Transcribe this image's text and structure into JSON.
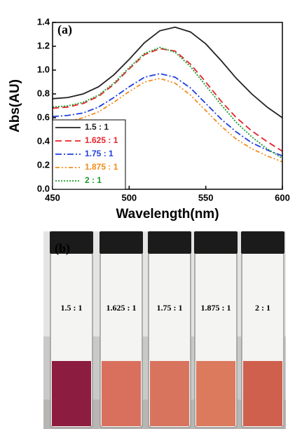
{
  "chart_data": {
    "type": "line",
    "panel_label": "(a)",
    "xlabel": "Wavelength(nm)",
    "ylabel": "Abs(AU)",
    "x": [
      450,
      460,
      470,
      480,
      490,
      500,
      510,
      520,
      530,
      540,
      550,
      560,
      570,
      580,
      590,
      600
    ],
    "xlim": [
      450,
      600
    ],
    "xticks": [
      450,
      500,
      550,
      600
    ],
    "ylim": [
      0,
      1.4
    ],
    "yticks": [
      {
        "value": 0,
        "label": "0.0"
      },
      0.2,
      0.4,
      0.6,
      0.8,
      {
        "value": 1,
        "label": "1.0"
      },
      1.2,
      1.4
    ],
    "legend": "lower left",
    "series": [
      {
        "name": "1.5 : 1",
        "color": "#222222",
        "linestyle": "solid",
        "values": [
          0.76,
          0.77,
          0.8,
          0.86,
          0.96,
          1.09,
          1.23,
          1.33,
          1.36,
          1.32,
          1.22,
          1.08,
          0.93,
          0.8,
          0.69,
          0.6
        ]
      },
      {
        "name": "1.625 : 1",
        "color": "#e8222a",
        "linestyle": "dashed",
        "values": [
          0.68,
          0.69,
          0.72,
          0.78,
          0.88,
          1.01,
          1.13,
          1.18,
          1.16,
          1.05,
          0.9,
          0.74,
          0.6,
          0.49,
          0.4,
          0.32
        ]
      },
      {
        "name": "1.75 : 1",
        "color": "#1f3fe0",
        "linestyle": "dashdot",
        "values": [
          0.61,
          0.62,
          0.64,
          0.69,
          0.77,
          0.86,
          0.94,
          0.97,
          0.94,
          0.85,
          0.72,
          0.59,
          0.48,
          0.39,
          0.33,
          0.28
        ]
      },
      {
        "name": "1.875 : 1",
        "color": "#f28c1a",
        "linestyle": "dashdotdot",
        "values": [
          0.56,
          0.57,
          0.6,
          0.65,
          0.73,
          0.82,
          0.9,
          0.93,
          0.89,
          0.79,
          0.66,
          0.53,
          0.42,
          0.34,
          0.28,
          0.23
        ]
      },
      {
        "name": "2 : 1",
        "color": "#1a9a2a",
        "linestyle": "dotted",
        "values": [
          0.69,
          0.7,
          0.73,
          0.79,
          0.89,
          1.02,
          1.14,
          1.19,
          1.15,
          1.03,
          0.87,
          0.71,
          0.56,
          0.44,
          0.34,
          0.26
        ]
      }
    ]
  },
  "photo": {
    "panel_label": "(b)",
    "vials": [
      {
        "label": "1.5 : 1",
        "color": "#8c1c40"
      },
      {
        "label": "1.625 : 1",
        "color": "#d9705e"
      },
      {
        "label": "1.75 : 1",
        "color": "#d8735e"
      },
      {
        "label": "1.875 : 1",
        "color": "#dc7a5e"
      },
      {
        "label": "2 : 1",
        "color": "#d0604e"
      }
    ]
  }
}
